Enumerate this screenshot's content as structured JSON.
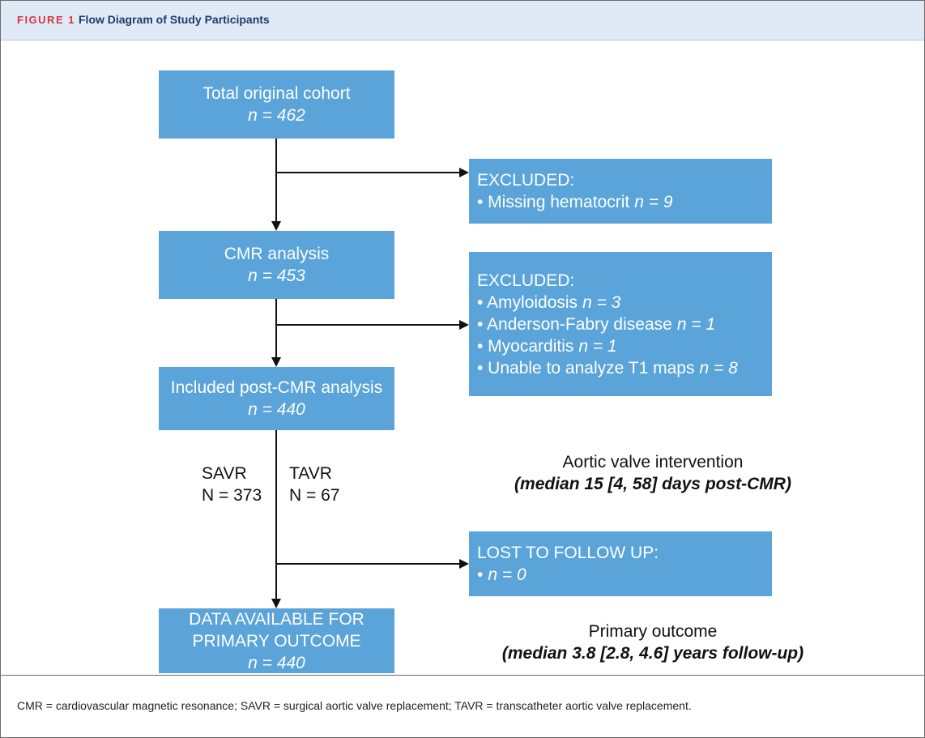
{
  "header": {
    "label": "FIGURE 1",
    "title": "Flow Diagram of Study Participants"
  },
  "nodes": [
    {
      "lines": [
        {
          "text": "Total original cohort"
        },
        {
          "em": "n = 462"
        }
      ]
    },
    {
      "lines": [
        {
          "text": "EXCLUDED:"
        },
        {
          "text": "• Missing hematocrit",
          "em": "n = 9"
        }
      ]
    },
    {
      "lines": [
        {
          "text": "CMR analysis"
        },
        {
          "em": "n = 453"
        }
      ]
    },
    {
      "lines": [
        {
          "text": "EXCLUDED:"
        },
        {
          "text": "• Amyloidosis",
          "em": "n = 3"
        },
        {
          "text": "• Anderson-Fabry disease",
          "em": "n = 1"
        },
        {
          "text": "• Myocarditis",
          "em": "n = 1"
        },
        {
          "text": "• Unable to analyze T1 maps",
          "em": "n = 8"
        }
      ]
    },
    {
      "lines": [
        {
          "text": "Included post-CMR analysis"
        },
        {
          "em": "n = 440"
        }
      ]
    },
    {
      "lines": [
        {
          "text": "LOST TO FOLLOW UP:"
        },
        {
          "text": "•",
          "em": "n = 0"
        }
      ]
    },
    {
      "lines": [
        {
          "text": "DATA AVAILABLE FOR"
        },
        {
          "text": "PRIMARY OUTCOME"
        },
        {
          "em": "n = 440"
        }
      ]
    }
  ],
  "branches": [
    {
      "name": "SAVR",
      "count": "N = 373"
    },
    {
      "name": "TAVR",
      "count": "N = 67"
    }
  ],
  "annotations": [
    {
      "title": "Aortic valve intervention",
      "detail": "(median 15 [4, 58] days post-CMR)"
    },
    {
      "title": "Primary outcome",
      "detail": "(median 3.8 [2.8, 4.6] years follow-up)"
    }
  ],
  "caption": "CMR = cardiovascular magnetic resonance; SAVR = surgical aortic valve replacement; TAVR = transcatheter aortic valve replacement."
}
